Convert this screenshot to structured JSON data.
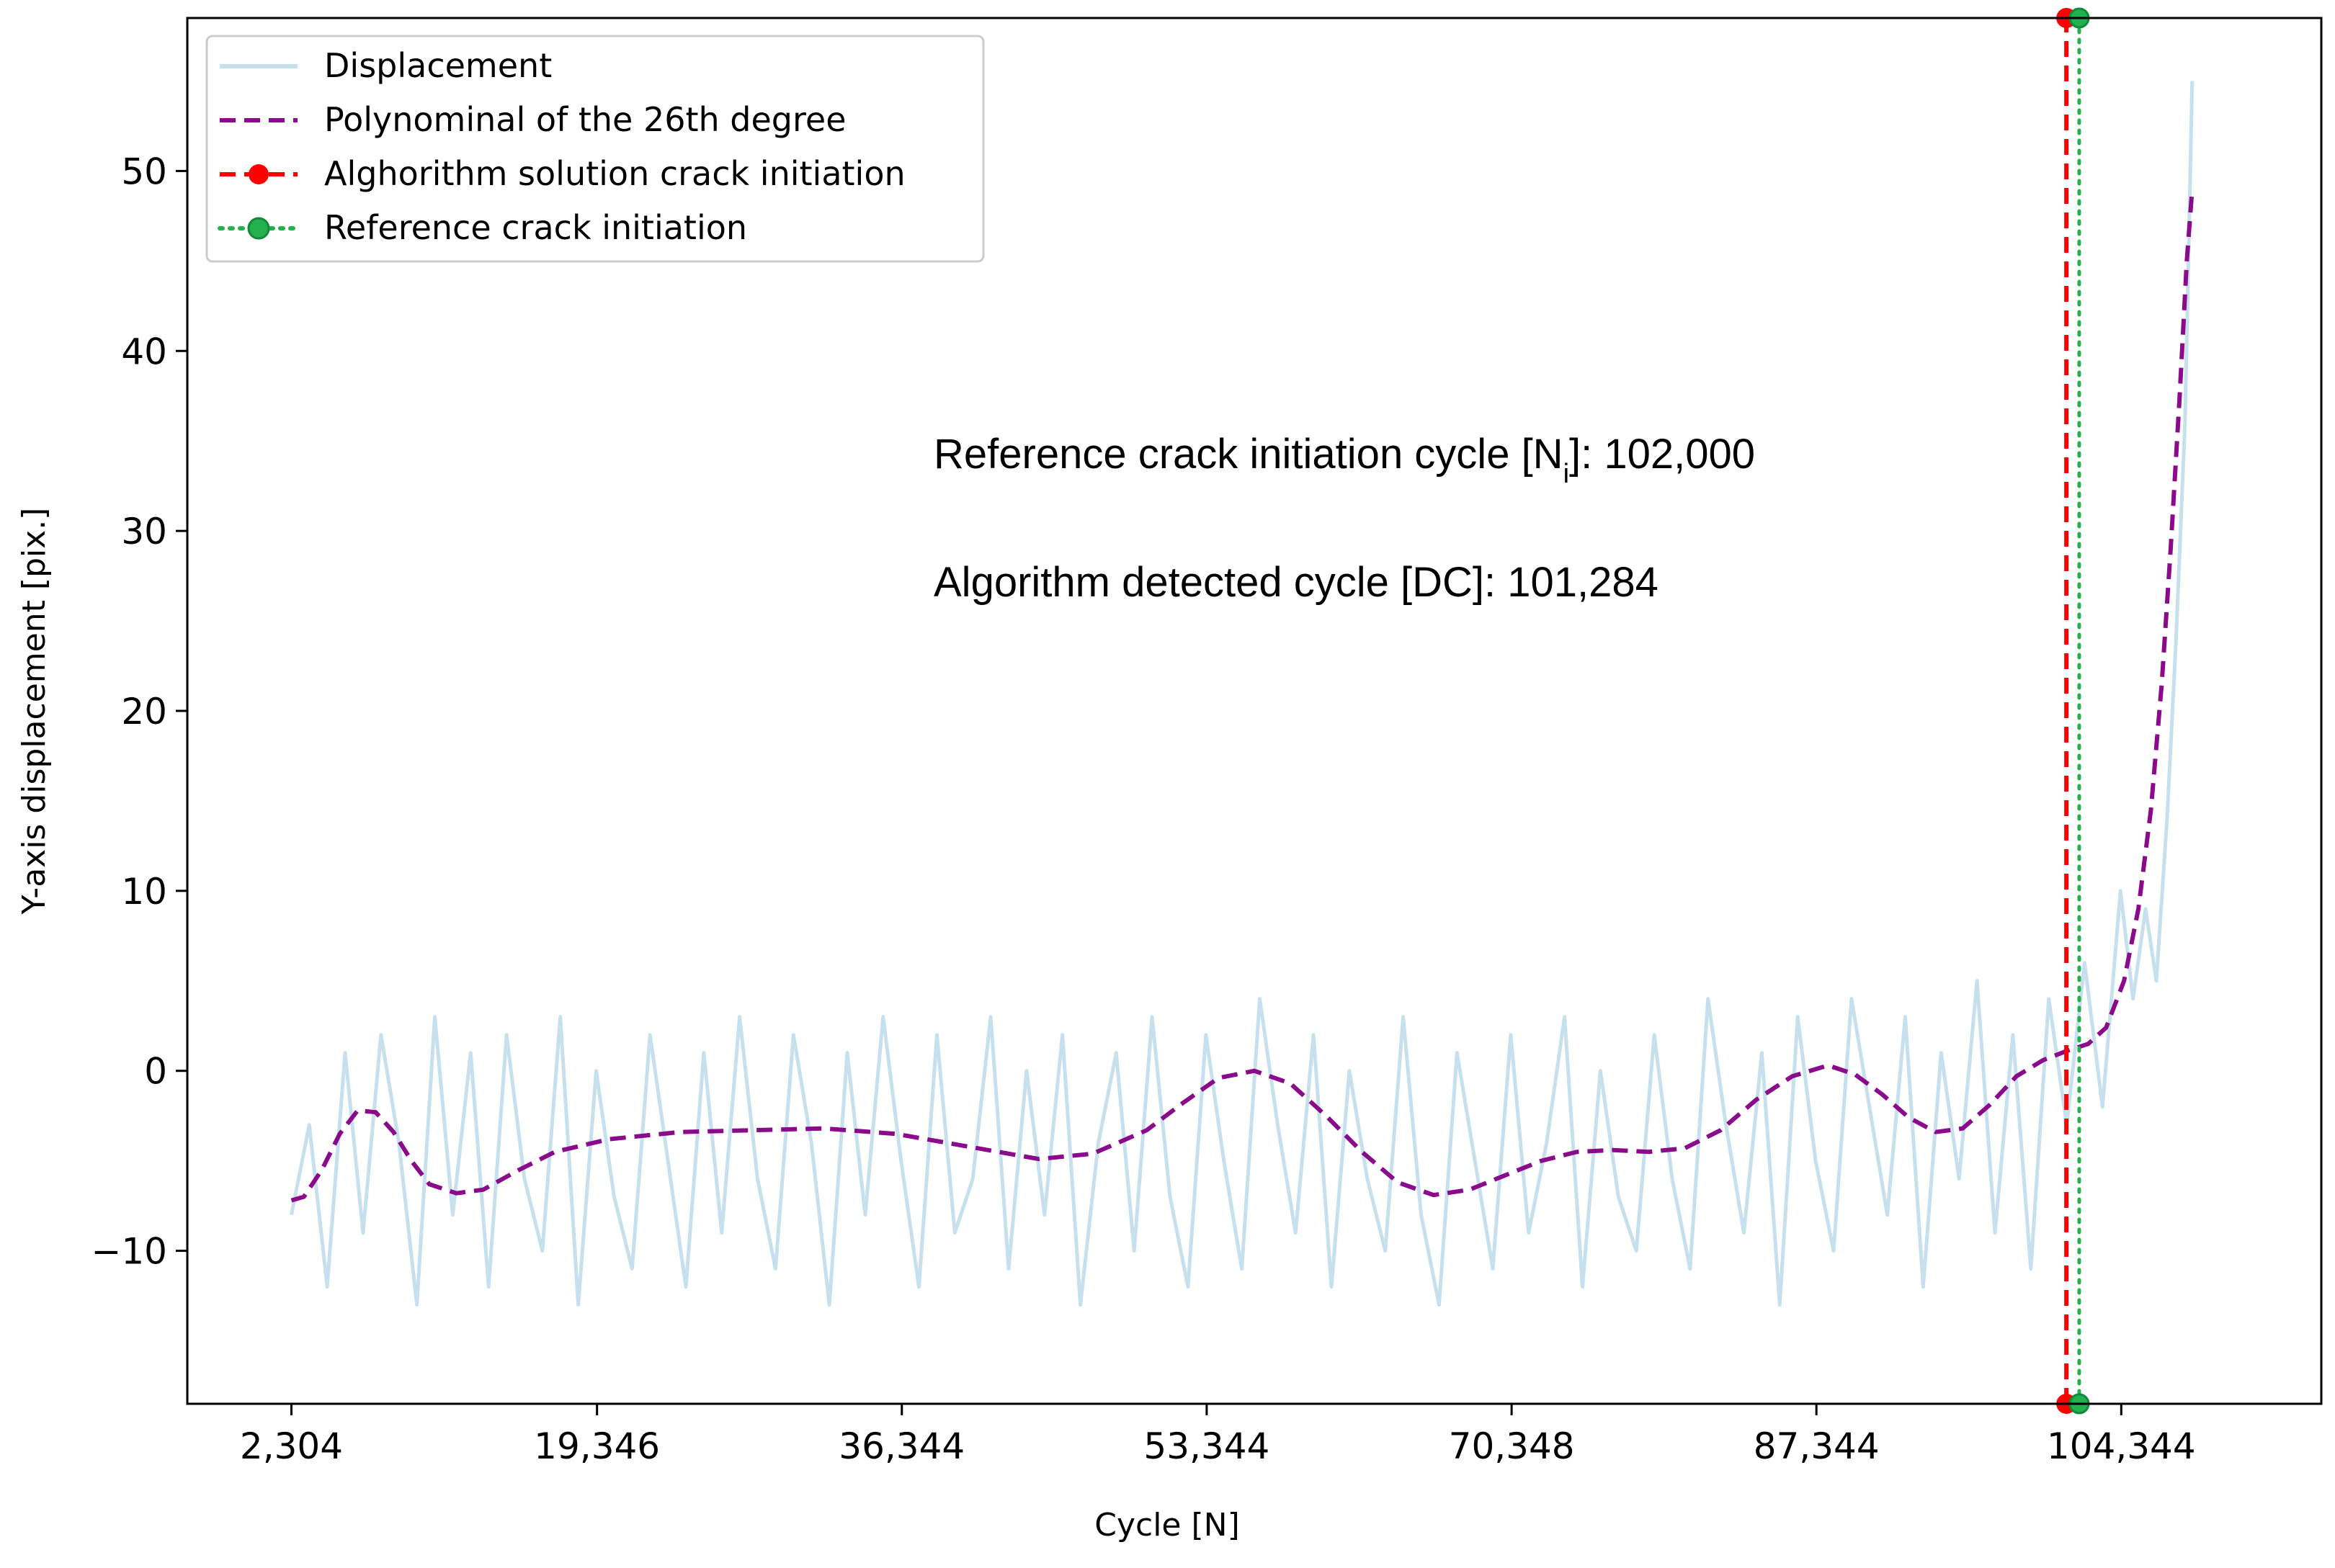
{
  "chart_data": {
    "type": "line",
    "title": "",
    "xlabel": "Cycle [N]",
    "ylabel": "Y-axis displacement [pix.]",
    "xlim": [
      -3500,
      115500
    ],
    "ylim": [
      -18.5,
      58.5
    ],
    "grid": false,
    "legend_position": "top-left",
    "x_ticks": [
      {
        "value": 2304,
        "label": "2,304"
      },
      {
        "value": 19346,
        "label": "19,346"
      },
      {
        "value": 36344,
        "label": "36,344"
      },
      {
        "value": 53344,
        "label": "53,344"
      },
      {
        "value": 70348,
        "label": "70,348"
      },
      {
        "value": 87344,
        "label": "87,344"
      },
      {
        "value": 104344,
        "label": "104,344"
      }
    ],
    "y_ticks": [
      {
        "value": -10,
        "label": "−10"
      },
      {
        "value": 0,
        "label": "0"
      },
      {
        "value": 10,
        "label": "10"
      },
      {
        "value": 20,
        "label": "20"
      },
      {
        "value": 30,
        "label": "30"
      },
      {
        "value": 40,
        "label": "40"
      },
      {
        "value": 50,
        "label": "50"
      }
    ],
    "series": [
      {
        "name": "Displacement",
        "style": "solid",
        "color": "#c6e0ee",
        "x": [
          2304,
          3300,
          4300,
          5300,
          6300,
          7300,
          8300,
          9300,
          10300,
          11300,
          12300,
          13300,
          14300,
          15300,
          16300,
          17300,
          18300,
          19300,
          20300,
          21300,
          22300,
          23300,
          24300,
          25300,
          26300,
          27300,
          28300,
          29300,
          30300,
          31300,
          32300,
          33300,
          34300,
          35300,
          36300,
          37300,
          38300,
          39300,
          40300,
          41300,
          42300,
          43300,
          44300,
          45300,
          46300,
          47300,
          48300,
          49300,
          50300,
          51300,
          52300,
          53300,
          54300,
          55300,
          56300,
          57300,
          58300,
          59300,
          60300,
          61300,
          62300,
          63300,
          64300,
          65300,
          66300,
          67300,
          68300,
          69300,
          70300,
          71300,
          72300,
          73300,
          74300,
          75300,
          76300,
          77300,
          78300,
          79300,
          80300,
          81300,
          82300,
          83300,
          84300,
          85300,
          86300,
          87300,
          88300,
          89300,
          90300,
          91300,
          92300,
          93300,
          94300,
          95300,
          96300,
          97300,
          98300,
          99300,
          100300,
          101300,
          102300,
          103300,
          104300,
          105000,
          105700,
          106300,
          106900,
          107400,
          107900,
          108300
        ],
        "y": [
          -8,
          -3,
          -12,
          1,
          -9,
          2,
          -4,
          -13,
          3,
          -8,
          1,
          -12,
          2,
          -6,
          -10,
          3,
          -13,
          0,
          -7,
          -11,
          2,
          -5,
          -12,
          1,
          -9,
          3,
          -6,
          -11,
          2,
          -4,
          -13,
          1,
          -8,
          3,
          -5,
          -12,
          2,
          -9,
          -6,
          3,
          -11,
          0,
          -8,
          2,
          -13,
          -4,
          1,
          -10,
          3,
          -7,
          -12,
          2,
          -5,
          -11,
          4,
          -3,
          -9,
          2,
          -12,
          0,
          -6,
          -10,
          3,
          -8,
          -13,
          1,
          -5,
          -11,
          2,
          -9,
          -4,
          3,
          -12,
          0,
          -7,
          -10,
          2,
          -6,
          -11,
          4,
          -3,
          -9,
          1,
          -13,
          3,
          -5,
          -10,
          4,
          -2,
          -8,
          3,
          -12,
          1,
          -6,
          5,
          -9,
          2,
          -11,
          4,
          -3,
          6,
          -2,
          10,
          4,
          9,
          5,
          14,
          24,
          36,
          55
        ]
      },
      {
        "name": "Polynominal of the 26th degree",
        "style": "dashed",
        "color": "#8b0a8b",
        "x": [
          2304,
          3000,
          4000,
          5000,
          6000,
          7000,
          8000,
          9000,
          10000,
          11500,
          13000,
          15000,
          17000,
          20000,
          24000,
          28000,
          32000,
          36000,
          40000,
          44000,
          47000,
          50000,
          52000,
          54000,
          56000,
          58000,
          60000,
          62000,
          64000,
          66000,
          68000,
          70000,
          72000,
          74000,
          76000,
          78000,
          80000,
          82000,
          84000,
          86000,
          88000,
          89500,
          91000,
          92500,
          94000,
          95500,
          97000,
          98500,
          100000,
          101284,
          102500,
          103500,
          104500,
          105300,
          106000,
          106600,
          107100,
          107600,
          108000,
          108300
        ],
        "y": [
          -7.2,
          -7,
          -5.5,
          -3.5,
          -2.2,
          -2.3,
          -3.4,
          -5,
          -6.3,
          -6.8,
          -6.6,
          -5.5,
          -4.5,
          -3.8,
          -3.4,
          -3.3,
          -3.2,
          -3.5,
          -4.2,
          -4.9,
          -4.6,
          -3.3,
          -1.8,
          -0.4,
          0,
          -0.7,
          -2.5,
          -4.5,
          -6.2,
          -6.9,
          -6.6,
          -5.8,
          -5,
          -4.5,
          -4.4,
          -4.5,
          -4.3,
          -3.3,
          -1.6,
          -0.3,
          0.3,
          -0.2,
          -1.3,
          -2.6,
          -3.4,
          -3.2,
          -1.9,
          -0.3,
          0.6,
          1.1,
          1.5,
          2.4,
          5,
          9,
          14.5,
          21.5,
          29,
          37.5,
          45,
          49
        ]
      },
      {
        "name": "Alghorithm solution crack initiation",
        "style": "dashed-marker",
        "color": "#ff0000",
        "x": [
          101284,
          101284
        ],
        "y": [
          -18.5,
          58.5
        ]
      },
      {
        "name": "Reference crack initiation",
        "style": "dotted-marker",
        "color": "#22b14c",
        "x": [
          102000,
          102000
        ],
        "y": [
          -18.5,
          58.5
        ]
      }
    ],
    "annotations": [
      {
        "prefix": "Reference crack initiation cycle [N",
        "subscript": "i",
        "suffix": "]: 102,000",
        "color": "#0a8a0a"
      },
      {
        "text": "Algorithm detected cycle [DC]: 101,284",
        "color": "#e00000"
      }
    ]
  }
}
